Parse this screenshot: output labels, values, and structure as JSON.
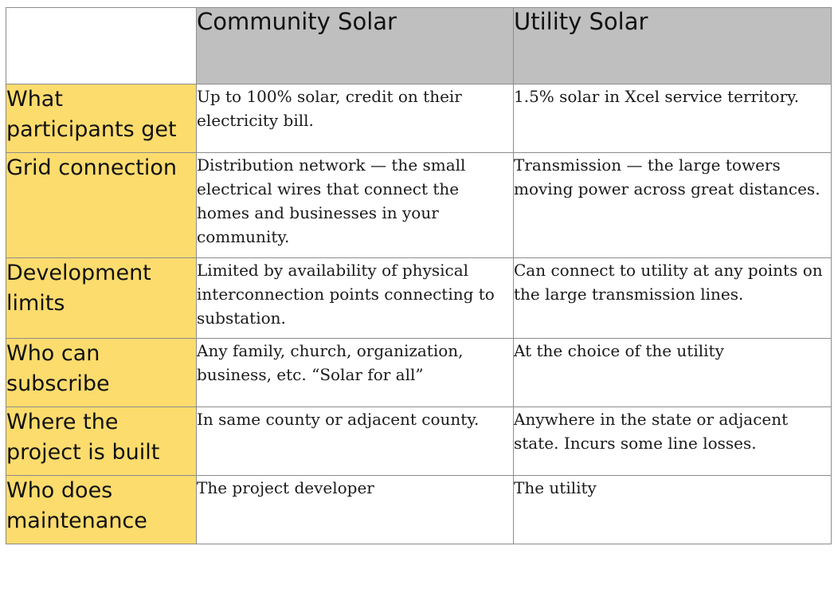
{
  "table": {
    "headers": [
      "",
      "Community Solar",
      "Utility Solar"
    ],
    "rows": [
      {
        "label": "What participants get",
        "community": "Up to 100% solar, credit on their electricity bill.",
        "utility": "1.5% solar in Xcel service territory."
      },
      {
        "label": "Grid connection",
        "community": "Distribution network — the small electrical wires that connect the homes and businesses in your community.",
        "utility": "Transmission — the large towers moving power across great distances."
      },
      {
        "label": "Development limits",
        "community": "Limited by availability of physical interconnection points connecting to substation.",
        "utility": "Can connect to utility at any points on the large transmission lines."
      },
      {
        "label": "Who can subscribe",
        "community": "Any family, church, organization, business, etc. “Solar for all”",
        "utility": "At the choice of the utility"
      },
      {
        "label": "Where the project is built",
        "community": "In same county or adjacent county.",
        "utility": "Anywhere in the state or adjacent state. Incurs some line losses."
      },
      {
        "label": "Who does maintenance",
        "community": "The project developer",
        "utility": "The utility"
      }
    ]
  },
  "colors": {
    "header_bg": "#bfbfbf",
    "row_label_bg": "#fcdc6d",
    "border": "#8c8c8c"
  }
}
